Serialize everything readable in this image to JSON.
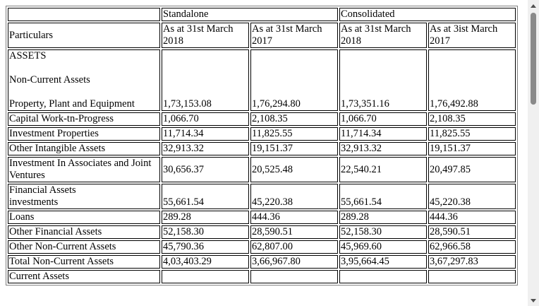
{
  "table": {
    "group_headers": {
      "standalone": "Standalone",
      "consolidated": "Consolidated"
    },
    "particulars_header": "Particulars",
    "columns": [
      {
        "line1": "As at 31st March",
        "line2": "2018"
      },
      {
        "line1": "As at 31st March",
        "line2": "2017"
      },
      {
        "line1": "As at 31st March",
        "line2": "2018"
      },
      {
        "line1": "As at 3ist March",
        "line2": "2017"
      }
    ],
    "sections": {
      "assets": "ASSETS",
      "non_current_assets": "Non-Current Assets",
      "current_assets": "Current Assets"
    },
    "ppe": {
      "label": "Property, Plant and Equipment",
      "values": [
        "1,73,153.08",
        "1,76,294.80",
        "1,73,351.16",
        "1,76,492.88"
      ]
    },
    "rows": [
      {
        "label": "Capital Work-tn-Progress",
        "values": [
          "1,066.70",
          "2,108.35",
          "1,066.70",
          "2,108.35"
        ]
      },
      {
        "label": "Investment Properties",
        "values": [
          "11,714.34",
          "11,825.55",
          "11,714.34",
          "11,825.55"
        ]
      },
      {
        "label": "Other Intangible Assets",
        "values": [
          "32,913.32",
          "19,151.37",
          "32,913.32",
          "19,151.37"
        ]
      },
      {
        "label": "Investment In Associates and Joint Ventures",
        "values": [
          "30,656.37",
          "20,525.48",
          "22,540.21",
          "20,497.85"
        ]
      }
    ],
    "financial_assets": {
      "heading": "Financial Assets",
      "label": "investments",
      "values": [
        "55,661.54",
        "45,220.38",
        "55,661.54",
        "45,220.38"
      ]
    },
    "rows2": [
      {
        "label": "Loans",
        "values": [
          "289.28",
          "444.36",
          "289.28",
          "444.36"
        ]
      },
      {
        "label": "Other Financial Assets",
        "values": [
          "52,158.30",
          "28,590.51",
          "52,158.30",
          "28,590.51"
        ]
      },
      {
        "label": "Other Non-Current Assets",
        "values": [
          "45,790.36",
          "62,807.00",
          "45,969.60",
          "62,966.58"
        ]
      },
      {
        "label": "Total Non-Current Assets",
        "values": [
          "4,03,403.29",
          "3,66,967.80",
          "3,95,664.45",
          "3,67,297.83"
        ]
      }
    ]
  },
  "scrollbar": {
    "up_icon": "arrow-up-icon",
    "down_icon": "arrow-down-icon"
  }
}
